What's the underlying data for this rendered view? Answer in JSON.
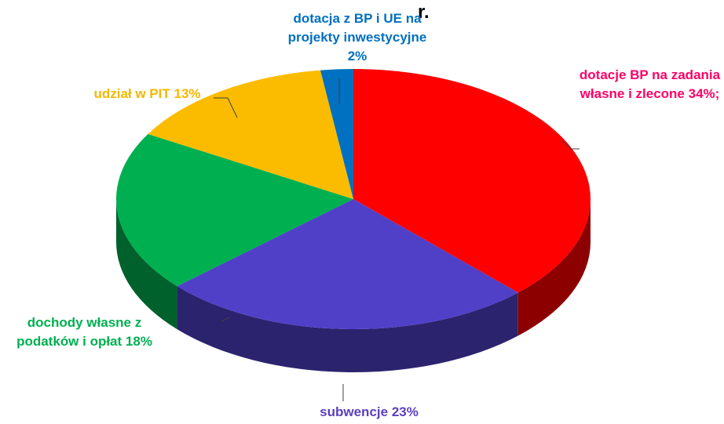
{
  "chart_data": {
    "type": "pie",
    "title": "r.",
    "categories": [
      "dotacje BP na zadania własne i zlecone",
      "subwencje",
      "dochody własne z podatków i opłat",
      "udział w PIT",
      "dotacja z BP i UE na projekty inwestycyjne"
    ],
    "values": [
      34,
      23,
      18,
      13,
      2
    ],
    "value_labels": [
      "34%;",
      "23%",
      "18%",
      "13%",
      "2%"
    ],
    "colors": [
      "#ff0000",
      "#5040c8",
      "#00b050",
      "#fbbc00",
      "#0070c0"
    ],
    "label_colors": [
      "#ff0066",
      "#5b3fc0",
      "#00b050",
      "#f5b800",
      "#0070c0"
    ]
  }
}
